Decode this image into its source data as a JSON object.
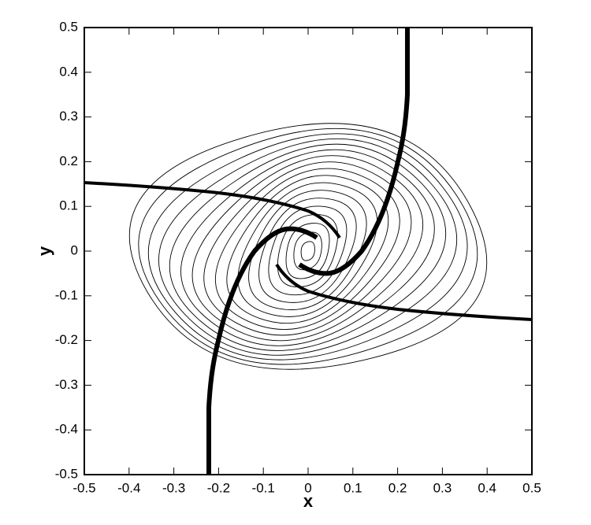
{
  "chart_data": {
    "type": "contour",
    "xlabel": "x",
    "ylabel": "y",
    "xlim": [
      -0.5,
      0.5
    ],
    "ylim": [
      -0.5,
      0.5
    ],
    "xticks": [
      -0.5,
      -0.4,
      -0.3,
      -0.2,
      -0.1,
      0,
      0.1,
      0.2,
      0.3,
      0.4,
      0.5
    ],
    "yticks": [
      -0.5,
      -0.4,
      -0.3,
      -0.2,
      -0.1,
      0,
      0.1,
      0.2,
      0.3,
      0.4,
      0.5
    ]
  }
}
